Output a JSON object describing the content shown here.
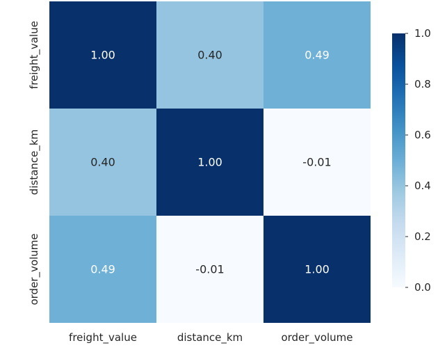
{
  "chart_data": {
    "type": "heatmap",
    "title": "",
    "xlabel": "",
    "ylabel": "",
    "x_categories": [
      "freight_value",
      "distance_km",
      "order_volume"
    ],
    "y_categories": [
      "freight_value",
      "distance_km",
      "order_volume"
    ],
    "values": [
      [
        1.0,
        0.4,
        0.49
      ],
      [
        0.4,
        1.0,
        -0.01
      ],
      [
        0.49,
        -0.01,
        1.0
      ]
    ],
    "annotations": [
      [
        "1.00",
        "0.40",
        "0.49"
      ],
      [
        "0.40",
        "1.00",
        "-0.01"
      ],
      [
        "0.49",
        "-0.01",
        "1.00"
      ]
    ],
    "colormap": "Blues",
    "colorbar": {
      "range": [
        0.0,
        1.0
      ],
      "ticks": [
        0.0,
        0.2,
        0.4,
        0.6,
        0.8,
        1.0
      ],
      "tick_labels": [
        "0.0",
        "0.2",
        "0.4",
        "0.6",
        "0.8",
        "1.0"
      ]
    }
  }
}
